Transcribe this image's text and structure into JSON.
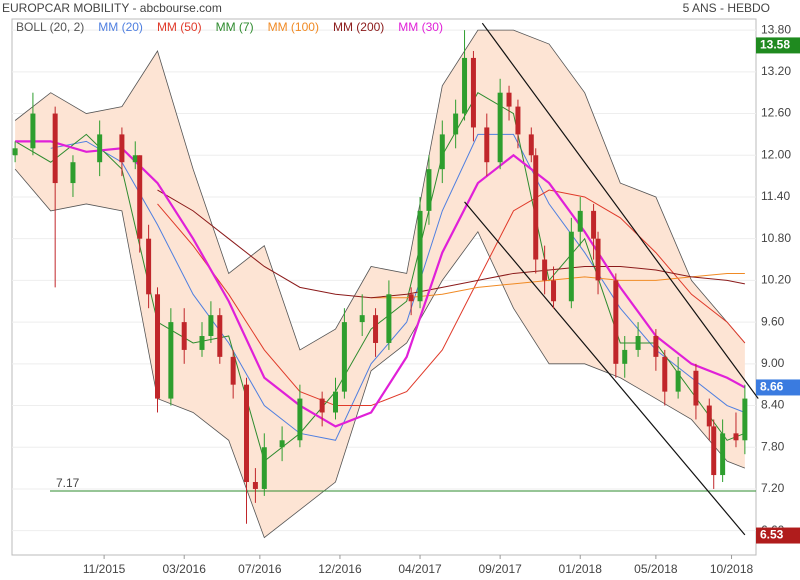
{
  "chart_data": {
    "type": "candlestick",
    "title": "EUROPCAR MOBILITY - abcbourse.com",
    "subtitle": "5 ANS - HEBDO",
    "xlim": [
      -0.7,
      166.5
    ],
    "ylim": [
      6.25,
      13.96
    ],
    "xticks": [
      {
        "value": 20,
        "label": "11/2015"
      },
      {
        "value": 38,
        "label": "03/2016"
      },
      {
        "value": 55,
        "label": "07/2016"
      },
      {
        "value": 73,
        "label": "12/2016"
      },
      {
        "value": 91,
        "label": "04/2017"
      },
      {
        "value": 109,
        "label": "09/2017"
      },
      {
        "value": 127,
        "label": "01/2018"
      },
      {
        "value": 144,
        "label": "05/2018"
      },
      {
        "value": 161,
        "label": "10/2018"
      }
    ],
    "yticks": [
      {
        "value": 6.6,
        "label": "6.60"
      },
      {
        "value": 7.2,
        "label": "7.20"
      },
      {
        "value": 7.8,
        "label": "7.80"
      },
      {
        "value": 8.4,
        "label": "8.40"
      },
      {
        "value": 9.0,
        "label": "9.00"
      },
      {
        "value": 9.6,
        "label": "9.60"
      },
      {
        "value": 10.2,
        "label": "10.20"
      },
      {
        "value": 10.8,
        "label": "10.80"
      },
      {
        "value": 11.4,
        "label": "11.40"
      },
      {
        "value": 12.0,
        "label": "12.00"
      },
      {
        "value": 12.6,
        "label": "12.60"
      },
      {
        "value": 13.2,
        "label": "13.20"
      },
      {
        "value": 13.8,
        "label": "13.80"
      }
    ],
    "grid": true,
    "candles": {
      "up_color": "#2e9e2e",
      "down_color": "#c0262a",
      "x": [
        0,
        4,
        9,
        13,
        19,
        24,
        27,
        28,
        30,
        32,
        35,
        38,
        42,
        44,
        46,
        49,
        52,
        54,
        56,
        60,
        64,
        69,
        72,
        74,
        78,
        81,
        84,
        89,
        91,
        93,
        96,
        99,
        101,
        103,
        106,
        109,
        111,
        113,
        116,
        117,
        119,
        121,
        125,
        127,
        130,
        131,
        135,
        137,
        140,
        144,
        146,
        149,
        153,
        156,
        157,
        159,
        162,
        164
      ],
      "open": [
        12.0,
        12.1,
        12.6,
        11.6,
        11.9,
        12.3,
        11.9,
        12.0,
        10.8,
        10.0,
        8.5,
        9.6,
        9.2,
        9.4,
        9.7,
        9.1,
        8.7,
        7.3,
        7.2,
        7.8,
        7.9,
        8.5,
        8.3,
        8.6,
        9.6,
        9.7,
        9.3,
        10.0,
        9.9,
        11.2,
        11.8,
        12.3,
        12.6,
        13.4,
        12.4,
        11.9,
        12.9,
        12.7,
        12.3,
        12.0,
        10.5,
        10.2,
        9.9,
        10.9,
        11.2,
        10.8,
        10.2,
        9.0,
        9.2,
        9.4,
        9.1,
        8.6,
        8.9,
        8.4,
        8.1,
        7.4,
        8.0,
        7.9
      ],
      "high": [
        12.2,
        12.9,
        12.7,
        12.0,
        12.5,
        12.4,
        12.2,
        12.0,
        11.0,
        10.1,
        9.8,
        9.8,
        9.6,
        9.9,
        9.8,
        9.2,
        8.8,
        7.5,
        8.0,
        8.1,
        8.7,
        8.6,
        8.8,
        9.8,
        10.0,
        9.8,
        10.2,
        10.1,
        11.4,
        12.0,
        12.5,
        12.8,
        13.8,
        13.5,
        12.6,
        13.1,
        13.0,
        12.8,
        12.4,
        12.1,
        10.7,
        10.4,
        11.1,
        11.4,
        11.3,
        10.9,
        10.3,
        9.4,
        9.6,
        9.5,
        9.2,
        9.1,
        9.0,
        8.5,
        8.2,
        8.2,
        8.3,
        8.7
      ],
      "low": [
        11.9,
        12.0,
        10.1,
        11.4,
        11.7,
        11.7,
        11.8,
        10.6,
        9.8,
        8.3,
        8.4,
        9.0,
        9.1,
        9.3,
        9.0,
        8.5,
        6.7,
        7.0,
        7.1,
        7.6,
        7.8,
        8.1,
        8.2,
        8.5,
        9.4,
        9.1,
        9.2,
        9.7,
        9.8,
        11.0,
        11.6,
        12.1,
        12.5,
        12.2,
        11.7,
        11.8,
        12.5,
        12.1,
        11.9,
        10.3,
        10.0,
        9.8,
        9.8,
        10.7,
        10.5,
        10.0,
        8.8,
        8.8,
        9.1,
        8.9,
        8.4,
        8.5,
        8.2,
        7.9,
        7.2,
        7.3,
        7.8,
        7.7
      ],
      "close": [
        12.1,
        12.6,
        11.6,
        11.9,
        12.3,
        11.9,
        12.0,
        10.8,
        10.0,
        8.5,
        9.6,
        9.2,
        9.4,
        9.7,
        9.1,
        8.7,
        7.3,
        7.2,
        7.8,
        7.9,
        8.5,
        8.3,
        8.6,
        9.6,
        9.7,
        9.3,
        10.0,
        9.9,
        11.2,
        11.8,
        12.3,
        12.6,
        13.4,
        12.4,
        11.9,
        12.9,
        12.7,
        12.3,
        12.0,
        10.5,
        10.2,
        9.9,
        10.9,
        11.2,
        10.8,
        10.2,
        9.0,
        9.2,
        9.4,
        9.1,
        8.6,
        8.9,
        8.4,
        8.1,
        7.4,
        8.0,
        7.9,
        8.5
      ]
    },
    "line_x": [
      0,
      8,
      16,
      24,
      32,
      40,
      48,
      56,
      64,
      72,
      80,
      88,
      96,
      104,
      112,
      120,
      128,
      136,
      144,
      152,
      160,
      164
    ],
    "bollinger": {
      "name": "BOLL (20, 2)",
      "color": "#555555",
      "fill": "#fde4d4",
      "upper": [
        12.5,
        12.9,
        12.6,
        12.7,
        13.5,
        11.8,
        10.3,
        10.7,
        9.2,
        9.5,
        10.4,
        10.3,
        13.0,
        13.8,
        13.8,
        13.6,
        12.9,
        11.6,
        11.4,
        10.2,
        9.6,
        9.3
      ],
      "lower": [
        11.8,
        11.2,
        11.3,
        11.2,
        8.5,
        8.3,
        7.9,
        6.5,
        6.9,
        7.3,
        8.9,
        9.3,
        10.2,
        10.9,
        9.8,
        9.0,
        9.0,
        8.8,
        8.5,
        8.2,
        7.6,
        7.5
      ]
    },
    "series": [
      {
        "name": "MM (20)",
        "color": "#4f7fe0",
        "values": [
          null,
          12.1,
          12.2,
          11.9,
          11.0,
          10.0,
          9.3,
          8.4,
          8.0,
          7.9,
          9.0,
          9.6,
          11.2,
          12.3,
          12.3,
          11.3,
          10.6,
          9.8,
          9.2,
          8.8,
          8.4,
          8.3
        ]
      },
      {
        "name": "MM (50)",
        "color": "#e03a2a",
        "values": [
          null,
          null,
          null,
          null,
          11.3,
          10.7,
          10.0,
          9.2,
          8.6,
          8.4,
          8.4,
          8.6,
          9.2,
          10.2,
          11.2,
          11.5,
          11.4,
          11.1,
          10.6,
          10.0,
          9.6,
          9.3
        ]
      },
      {
        "name": "MM (7)",
        "color": "#2e8b2e",
        "values": [
          12.2,
          11.9,
          12.3,
          11.8,
          9.6,
          9.3,
          9.4,
          7.6,
          8.0,
          8.6,
          9.5,
          9.9,
          12.0,
          12.9,
          12.6,
          10.2,
          10.8,
          9.3,
          9.3,
          8.6,
          7.9,
          8.0
        ]
      },
      {
        "name": "MM (100)",
        "color": "#f08a24",
        "values": [
          null,
          null,
          null,
          null,
          null,
          null,
          null,
          null,
          null,
          null,
          9.95,
          9.95,
          10.0,
          10.1,
          10.15,
          10.2,
          10.25,
          10.2,
          10.2,
          10.25,
          10.3,
          10.3
        ]
      },
      {
        "name": "MM (200)",
        "color": "#8b1a1a",
        "values": [
          null,
          null,
          null,
          null,
          11.5,
          11.2,
          10.8,
          10.4,
          10.1,
          10.0,
          9.95,
          10.0,
          10.1,
          10.2,
          10.3,
          10.35,
          10.4,
          10.4,
          10.35,
          10.25,
          10.2,
          10.15
        ]
      },
      {
        "name": "MM (30)",
        "color": "#e020d8",
        "values": [
          12.2,
          12.2,
          12.05,
          12.1,
          11.6,
          10.8,
          9.9,
          8.8,
          8.4,
          8.1,
          8.3,
          9.1,
          10.6,
          11.6,
          12.0,
          11.6,
          10.9,
          10.1,
          9.4,
          9.0,
          8.8,
          8.66
        ]
      }
    ],
    "trend_lines": [
      {
        "x": [
          105,
          167
        ],
        "y": [
          13.9,
          8.5
        ]
      },
      {
        "x": [
          101,
          164
        ],
        "y": [
          11.33,
          6.54
        ]
      }
    ],
    "support_line": {
      "value": 7.17,
      "color": "#2e8b2e"
    },
    "price_markers": [
      {
        "value": 13.58,
        "color": "#1f8a1f"
      },
      {
        "value": 8.66,
        "color": "#3a7be0"
      },
      {
        "value": 6.53,
        "color": "#b01c1c"
      }
    ]
  }
}
